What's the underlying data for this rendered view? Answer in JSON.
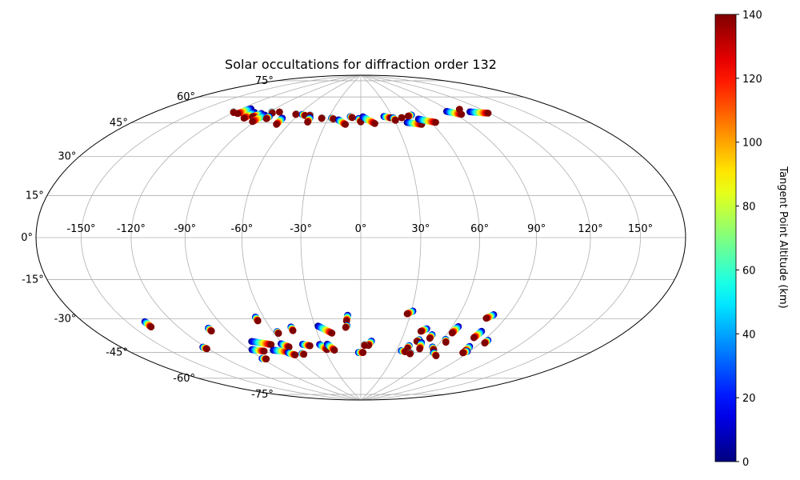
{
  "chart_data": {
    "type": "scatter",
    "projection": "hammer",
    "title": "Solar occultations for diffraction order 132",
    "colorbar": {
      "label": "Tangent Point Altitude (km)",
      "colormap": "jet",
      "min": 0,
      "max": 140,
      "ticks": [
        "0",
        "20",
        "40",
        "60",
        "80",
        "100",
        "120",
        "140"
      ]
    },
    "grid": true,
    "lon_ticks": [
      {
        "value": -150,
        "label": "-150°"
      },
      {
        "value": -120,
        "label": "-120°"
      },
      {
        "value": -90,
        "label": "-90°"
      },
      {
        "value": -60,
        "label": "-60°"
      },
      {
        "value": -30,
        "label": "-30°"
      },
      {
        "value": 0,
        "label": "0°"
      },
      {
        "value": 30,
        "label": "30°"
      },
      {
        "value": 60,
        "label": "60°"
      },
      {
        "value": 90,
        "label": "90°"
      },
      {
        "value": 120,
        "label": "120°"
      },
      {
        "value": 150,
        "label": "150°"
      }
    ],
    "lat_ticks": [
      {
        "value": 75,
        "label": "75°"
      },
      {
        "value": 60,
        "label": "60°"
      },
      {
        "value": 45,
        "label": "45°"
      },
      {
        "value": 30,
        "label": "30°"
      },
      {
        "value": 15,
        "label": "15°"
      },
      {
        "value": 0,
        "label": "0°"
      },
      {
        "value": -15,
        "label": "-15°"
      },
      {
        "value": -30,
        "label": "-30°"
      },
      {
        "value": -45,
        "label": "-45°"
      },
      {
        "value": -60,
        "label": "-60°"
      },
      {
        "value": -75,
        "label": "-75°"
      }
    ],
    "occultations": [
      {
        "lon_start": -121,
        "lat_start": 59.8,
        "lon_end": -120,
        "lat_end": 59.6
      },
      {
        "lon_start": -112,
        "lat_start": 62.8,
        "lon_end": -115,
        "lat_end": 59.5
      },
      {
        "lon_start": -103,
        "lat_start": 61.5,
        "lon_end": -103,
        "lat_end": 58.0
      },
      {
        "lon_start": -95,
        "lat_start": 61.5,
        "lon_end": -98,
        "lat_end": 59.3
      },
      {
        "lon_start": -90,
        "lat_start": 61.0,
        "lon_end": -92,
        "lat_end": 57.0
      },
      {
        "lon_start": -88,
        "lat_start": 63.0,
        "lon_end": -86,
        "lat_end": 62.5
      },
      {
        "lon_start": -81,
        "lat_start": 63.5,
        "lon_end": -81,
        "lat_end": 63.5
      },
      {
        "lon_start": -84,
        "lat_start": 60.5,
        "lon_end": -84,
        "lat_end": 59.3
      },
      {
        "lon_start": -71,
        "lat_start": 60.5,
        "lon_end": -70,
        "lat_end": 57.0
      },
      {
        "lon_start": -63,
        "lat_start": 63.5,
        "lon_end": -63,
        "lat_end": 63.2
      },
      {
        "lon_start": -57,
        "lat_start": 63.5,
        "lon_end": -53,
        "lat_end": 63.0
      },
      {
        "lon_start": -49,
        "lat_start": 63.5,
        "lon_end": -49,
        "lat_end": 63.2
      },
      {
        "lon_start": -47,
        "lat_start": 62.0,
        "lon_end": -46,
        "lat_end": 59.5
      },
      {
        "lon_start": -36,
        "lat_start": 62.3,
        "lon_end": -36,
        "lat_end": 62.0
      },
      {
        "lon_start": -27,
        "lat_start": 62.3,
        "lon_end": -25,
        "lat_end": 62.0
      },
      {
        "lon_start": -20,
        "lat_start": 61.5,
        "lon_end": -13,
        "lat_end": 59.0
      },
      {
        "lon_start": -10,
        "lat_start": 63.5,
        "lon_end": -8,
        "lat_end": 63.0
      },
      {
        "lon_start": -2,
        "lat_start": 62.5,
        "lon_end": 0,
        "lat_end": 60.5
      },
      {
        "lon_start": 2,
        "lat_start": 63.5,
        "lon_end": 12,
        "lat_end": 59.5
      },
      {
        "lon_start": 22,
        "lat_start": 63.5,
        "lon_end": 28,
        "lat_end": 62.5
      },
      {
        "lon_start": 30,
        "lat_start": 62.5,
        "lon_end": 31,
        "lat_end": 61.0
      },
      {
        "lon_start": 38,
        "lat_start": 62.5,
        "lon_end": 38,
        "lat_end": 62.3
      },
      {
        "lon_start": 49,
        "lat_start": 63.5,
        "lon_end": 45,
        "lat_end": 63.0
      },
      {
        "lon_start": 40,
        "lat_start": 59.5,
        "lon_end": 51,
        "lat_end": 58.0
      },
      {
        "lon_start": 52,
        "lat_start": 61.0,
        "lon_end": 64,
        "lat_end": 58.5
      },
      {
        "lon_start": 86,
        "lat_start": 63.5,
        "lon_end": 95,
        "lat_end": 61.0
      },
      {
        "lon_start": 101,
        "lat_start": 63.5,
        "lon_end": 101,
        "lat_end": 63.5
      },
      {
        "lon_start": 106,
        "lat_start": 61.5,
        "lon_end": 119,
        "lat_end": 59.3
      },
      {
        "lon_start": -138,
        "lat_start": -36.0,
        "lon_end": -138,
        "lat_end": -38.5
      },
      {
        "lon_start": -122,
        "lat_start": -50.5,
        "lon_end": -121,
        "lat_end": -51.5
      },
      {
        "lon_start": -101,
        "lat_start": -42.5,
        "lon_end": -101,
        "lat_end": -44.0
      },
      {
        "lon_start": -81,
        "lat_start": -51.0,
        "lon_end": -69,
        "lat_end": -53.5
      },
      {
        "lon_start": -88,
        "lat_start": -55.0,
        "lon_end": -80,
        "lat_end": -56.5
      },
      {
        "lon_start": -90,
        "lat_start": -60.0,
        "lon_end": -87,
        "lat_end": -60.5
      },
      {
        "lon_start": -72,
        "lat_start": -56.5,
        "lon_end": -61,
        "lat_end": -58.0
      },
      {
        "lon_start": -65,
        "lat_start": -39.0,
        "lon_end": -65,
        "lat_end": -41.0
      },
      {
        "lon_start": -57,
        "lat_start": -47.0,
        "lon_end": -57,
        "lat_end": -48.0
      },
      {
        "lon_start": -61,
        "lat_start": -53.5,
        "lon_end": -57,
        "lat_end": -55.5
      },
      {
        "lon_start": -62,
        "lat_start": -58.5,
        "lon_end": -58,
        "lat_end": -60.0
      },
      {
        "lon_start": -51,
        "lat_start": -59.5,
        "lon_end": -50,
        "lat_end": -60.0
      },
      {
        "lon_start": -46,
        "lat_start": -45.0,
        "lon_end": -46,
        "lat_end": -47.0
      },
      {
        "lon_start": -45,
        "lat_start": -54.5,
        "lon_end": -40,
        "lat_end": -55.5
      },
      {
        "lon_start": -32,
        "lat_start": -55.0,
        "lon_end": -28,
        "lat_end": -58.0
      },
      {
        "lon_start": -26,
        "lat_start": -55.0,
        "lon_end": -22,
        "lat_end": -58.5
      },
      {
        "lon_start": -28,
        "lat_start": -45.0,
        "lon_end": -20,
        "lat_end": -49.0
      },
      {
        "lon_start": -8,
        "lat_start": -39.5,
        "lon_end": -9,
        "lat_end": -42.5
      },
      {
        "lon_start": -9,
        "lat_start": -45.0,
        "lon_end": -10,
        "lat_end": -46.0
      },
      {
        "lon_start": -2,
        "lat_start": -60.0,
        "lon_end": 2,
        "lat_end": -60.0
      },
      {
        "lon_start": 8,
        "lat_start": -53.5,
        "lon_end": 6,
        "lat_end": -56.0
      },
      {
        "lon_start": 3,
        "lat_start": -55.5,
        "lon_end": 3,
        "lat_end": -56.0
      },
      {
        "lon_start": 31,
        "lat_start": -37.0,
        "lon_end": 28,
        "lat_end": -38.5
      },
      {
        "lon_start": 44,
        "lat_start": -46.0,
        "lon_end": 41,
        "lat_end": -47.5
      },
      {
        "lon_start": 34,
        "lat_start": -58.5,
        "lon_end": 38,
        "lat_end": -59.0
      },
      {
        "lon_start": 38,
        "lat_start": -55.5,
        "lon_end": 38,
        "lat_end": -57.0
      },
      {
        "lon_start": 43,
        "lat_start": -59.5,
        "lon_end": 43,
        "lat_end": -60.0
      },
      {
        "lon_start": 43,
        "lat_start": -52.0,
        "lon_end": 42,
        "lat_end": -53.0
      },
      {
        "lon_start": 46,
        "lat_start": -53.5,
        "lon_end": 48,
        "lat_end": -57.0
      },
      {
        "lon_start": 50,
        "lat_start": -49.0,
        "lon_end": 50,
        "lat_end": -51.0
      },
      {
        "lon_start": 57,
        "lat_start": -55.5,
        "lon_end": 60,
        "lat_end": -57.0
      },
      {
        "lon_start": 64,
        "lat_start": -44.0,
        "lon_end": 63,
        "lat_end": -47.5
      },
      {
        "lon_start": 62,
        "lat_start": -51.0,
        "lon_end": 64,
        "lat_end": -52.5
      },
      {
        "lon_start": 62,
        "lat_start": -58.5,
        "lon_end": 67,
        "lat_end": -60.0
      },
      {
        "lon_start": 81,
        "lat_start": -37.0,
        "lon_end": 78,
        "lat_end": -39.0
      },
      {
        "lon_start": 82,
        "lat_start": -45.5,
        "lon_end": 81,
        "lat_end": -49.0
      },
      {
        "lon_start": 85,
        "lat_start": -53.5,
        "lon_end": 86,
        "lat_end": -56.0
      },
      {
        "lon_start": 88,
        "lat_start": -56.0,
        "lon_end": 86,
        "lat_end": -57.0
      },
      {
        "lon_start": 93,
        "lat_start": -49.5,
        "lon_end": 93,
        "lat_end": -51.0
      }
    ]
  }
}
